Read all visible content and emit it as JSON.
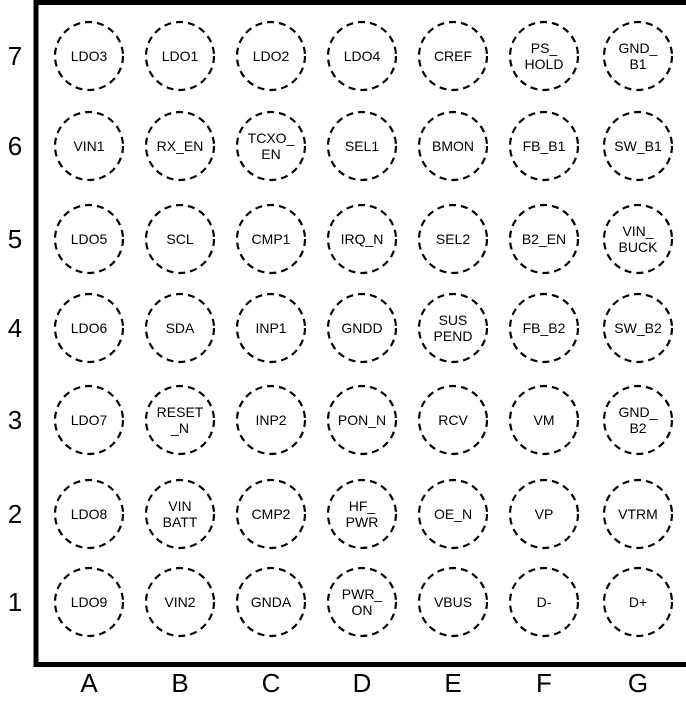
{
  "columns": [
    "A",
    "B",
    "C",
    "D",
    "E",
    "F",
    "G"
  ],
  "rows": [
    "7",
    "6",
    "5",
    "4",
    "3",
    "2",
    "1"
  ],
  "pins": [
    [
      [
        "LDO3"
      ],
      [
        "LDO1"
      ],
      [
        "LDO2"
      ],
      [
        "LDO4"
      ],
      [
        "CREF"
      ],
      [
        "PS_",
        "HOLD"
      ],
      [
        "GND_",
        "B1"
      ]
    ],
    [
      [
        "VIN1"
      ],
      [
        "RX_EN"
      ],
      [
        "TCXO_",
        "EN"
      ],
      [
        "SEL1"
      ],
      [
        "BMON"
      ],
      [
        "FB_B1"
      ],
      [
        "SW_B1"
      ]
    ],
    [
      [
        "LDO5"
      ],
      [
        "SCL"
      ],
      [
        "CMP1"
      ],
      [
        "IRQ_N"
      ],
      [
        "SEL2"
      ],
      [
        "B2_EN"
      ],
      [
        "VIN_",
        "BUCK"
      ]
    ],
    [
      [
        "LDO6"
      ],
      [
        "SDA"
      ],
      [
        "INP1"
      ],
      [
        "GNDD"
      ],
      [
        "SUS",
        "PEND"
      ],
      [
        "FB_B2"
      ],
      [
        "SW_B2"
      ]
    ],
    [
      [
        "LDO7"
      ],
      [
        "RESET",
        "_N"
      ],
      [
        "INP2"
      ],
      [
        "PON_N"
      ],
      [
        "RCV"
      ],
      [
        "VM"
      ],
      [
        "GND_",
        "B2"
      ]
    ],
    [
      [
        "LDO8"
      ],
      [
        "VIN",
        "BATT"
      ],
      [
        "CMP2"
      ],
      [
        "HF_",
        "PWR"
      ],
      [
        "OE_N"
      ],
      [
        "VP"
      ],
      [
        "VTRM"
      ]
    ],
    [
      [
        "LDO9"
      ],
      [
        "VIN2"
      ],
      [
        "GNDA"
      ],
      [
        "PWR_",
        "ON"
      ],
      [
        "VBUS"
      ],
      [
        "D-"
      ],
      [
        "D+"
      ]
    ]
  ],
  "colors": {
    "stroke": "#000000",
    "background": "#ffffff"
  }
}
